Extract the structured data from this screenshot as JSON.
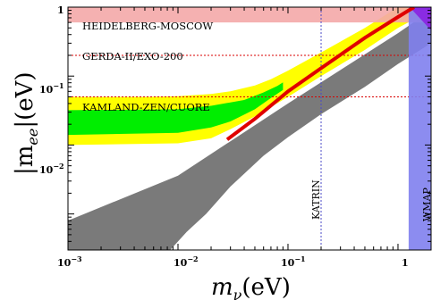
{
  "chart_data": {
    "type": "area",
    "title": "",
    "xlabel_math": "m",
    "xlabel_sub": "ν",
    "xlabel_unit": "(eV)",
    "ylabel_math": "|m",
    "ylabel_sub": "ee",
    "ylabel_unit": "|(eV)",
    "xscale": "log",
    "yscale": "log",
    "xlim": [
      0.001,
      2
    ],
    "ylim": [
      0.0003,
      1
    ],
    "grid": false,
    "x_ticks": [
      {
        "value": 0.001,
        "base": "10",
        "exp": "−3"
      },
      {
        "value": 0.01,
        "base": "10",
        "exp": "−2"
      },
      {
        "value": 0.1,
        "base": "10",
        "exp": "−1"
      },
      {
        "value": 1,
        "base": "1",
        "exp": ""
      }
    ],
    "y_ticks": [
      {
        "value": 0.01,
        "base": "10",
        "exp": "−2"
      },
      {
        "value": 0.1,
        "base": "10",
        "exp": "−1"
      },
      {
        "value": 1,
        "base": "1",
        "exp": ""
      }
    ],
    "colors": {
      "gray_band": "#7a7a7a",
      "yellow_band": "#ffff00",
      "green_band": "#00ee00",
      "red_curve": "#e00000",
      "excluded_region": "#f4a9a9",
      "wmap_region": "#8080ee",
      "limit_line": "#d80000",
      "katrin_line": "#4b4bc8",
      "purple_corner": "#8a2be2"
    },
    "gray_band": {
      "upper": [
        [
          0.001,
          0.0008
        ],
        [
          0.01,
          0.0036
        ],
        [
          0.1,
          0.04
        ],
        [
          1,
          0.42
        ],
        [
          2,
          0.9
        ]
      ],
      "lower": [
        [
          0.001,
          0.0003
        ],
        [
          0.0085,
          0.0003
        ],
        [
          0.012,
          0.00055
        ],
        [
          0.018,
          0.001
        ],
        [
          0.03,
          0.0025
        ],
        [
          0.06,
          0.007
        ],
        [
          0.1,
          0.013
        ],
        [
          0.2,
          0.028
        ],
        [
          0.5,
          0.07
        ],
        [
          1,
          0.15
        ],
        [
          2,
          0.3
        ]
      ]
    },
    "yellow_band": {
      "upper": [
        [
          0.001,
          0.05
        ],
        [
          0.005,
          0.05
        ],
        [
          0.01,
          0.051
        ],
        [
          0.02,
          0.055
        ],
        [
          0.03,
          0.06
        ],
        [
          0.05,
          0.073
        ],
        [
          0.07,
          0.09
        ],
        [
          0.1,
          0.12
        ],
        [
          0.2,
          0.22
        ],
        [
          0.5,
          0.5
        ],
        [
          1,
          1.0
        ],
        [
          2,
          1.0
        ]
      ],
      "lower": [
        [
          0.001,
          0.01
        ],
        [
          0.01,
          0.0106
        ],
        [
          0.02,
          0.0125
        ],
        [
          0.03,
          0.017
        ],
        [
          0.05,
          0.026
        ],
        [
          0.1,
          0.05
        ],
        [
          0.2,
          0.1
        ],
        [
          0.5,
          0.24
        ],
        [
          1,
          0.5
        ],
        [
          2,
          0.9
        ]
      ]
    },
    "green_band": {
      "upper": [
        [
          0.001,
          0.032
        ],
        [
          0.01,
          0.033
        ],
        [
          0.02,
          0.037
        ],
        [
          0.04,
          0.045
        ],
        [
          0.06,
          0.058
        ],
        [
          0.08,
          0.072
        ],
        [
          0.09,
          0.081
        ]
      ],
      "lower": [
        [
          0.001,
          0.014
        ],
        [
          0.01,
          0.015
        ],
        [
          0.02,
          0.018
        ],
        [
          0.03,
          0.022
        ],
        [
          0.05,
          0.033
        ],
        [
          0.07,
          0.048
        ],
        [
          0.09,
          0.063
        ]
      ]
    },
    "red_curve": [
      [
        0.028,
        0.012
      ],
      [
        0.05,
        0.024
      ],
      [
        0.1,
        0.06
      ],
      [
        0.2,
        0.13
      ],
      [
        0.5,
        0.36
      ],
      [
        1.0,
        0.72
      ],
      [
        1.4,
        1.0
      ]
    ],
    "limit_lines": [
      {
        "name": "HEIDELBERG-MOSCOW",
        "band": [
          0.6,
          1.0
        ]
      },
      {
        "name": "GERDA-II/EXO-200",
        "value": 0.2
      },
      {
        "name": "KAMLAND-ZEN/CUORE",
        "value": 0.05
      }
    ],
    "vertical_lines": [
      {
        "name": "KATRIN",
        "value": 0.2
      },
      {
        "name": "WMAP",
        "from": 1.25
      }
    ]
  }
}
